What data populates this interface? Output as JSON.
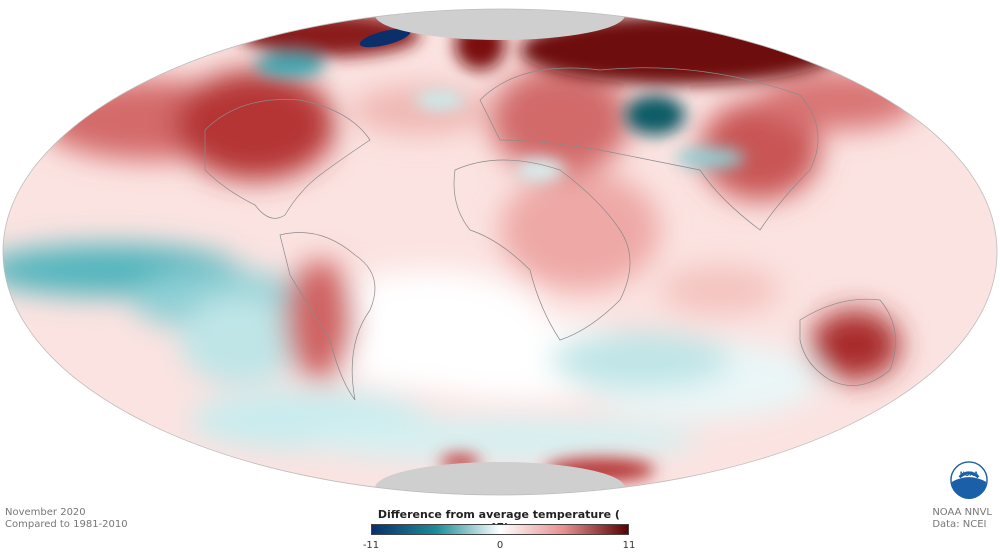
{
  "map": {
    "projection": "Mollweide",
    "variable": "temperature anomaly",
    "polar_nodata_color": "#cfcfcf",
    "land_outline_color": "#888888"
  },
  "footer_left": {
    "line1": "November 2020",
    "line2": "Compared to 1981-2010"
  },
  "footer_right": {
    "line1": "NOAA NNVL",
    "line2": "Data: NCEI"
  },
  "legend": {
    "title": "Difference from average temperature ( °F)",
    "min_label": "-11",
    "mid_label": "0",
    "max_label": "11",
    "min": -11,
    "max": 11,
    "colors": [
      "#0b2f6b",
      "#1b8c97",
      "#ffffff",
      "#e58f8f",
      "#5a0000"
    ]
  },
  "logo": {
    "text": "NOAA",
    "color": "#1a5fa8"
  }
}
